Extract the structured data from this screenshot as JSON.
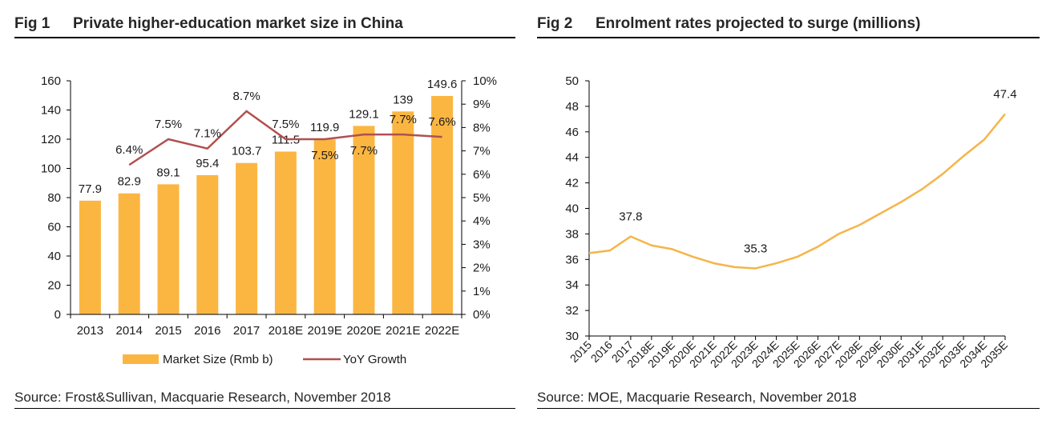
{
  "fig1": {
    "number": "Fig 1",
    "title": "Private higher-education market size in China",
    "source": "Source: Frost&Sullivan, Macquarie Research, November 2018"
  },
  "fig2": {
    "number": "Fig 2",
    "title": "Enrolment rates projected to surge (millions)",
    "source": "Source: MOE, Macquarie Research, November 2018"
  },
  "colors": {
    "bar": "#FBB642",
    "growth_line": "#B0504F",
    "enrolment_line": "#F5B54A",
    "axis": "#000000"
  },
  "chart_data": [
    {
      "type": "bar",
      "title": "Private higher-education market size in China",
      "categories": [
        "2013",
        "2014",
        "2015",
        "2016",
        "2017",
        "2018E",
        "2019E",
        "2020E",
        "2021E",
        "2022E"
      ],
      "series": [
        {
          "name": "Market Size (Rmb b)",
          "type": "bar",
          "axis": "left",
          "values": [
            77.9,
            82.9,
            89.1,
            95.4,
            103.7,
            111.5,
            119.9,
            129.1,
            139,
            149.6
          ],
          "labels": [
            "77.9",
            "82.9",
            "89.1",
            "95.4",
            "103.7",
            "111.5",
            "119.9",
            "129.1",
            "139",
            "149.6"
          ]
        },
        {
          "name": "YoY Growth",
          "type": "line",
          "axis": "right",
          "values": [
            null,
            6.4,
            7.5,
            7.1,
            8.7,
            7.5,
            7.5,
            7.7,
            7.7,
            7.6
          ],
          "labels": [
            null,
            "6.4%",
            "7.5%",
            "7.1%",
            "8.7%",
            "7.5%",
            "7.5%",
            "7.7%",
            "7.7%",
            "7.6%"
          ],
          "label_positions": [
            null,
            "above",
            "above",
            "above",
            "above",
            "above",
            "below",
            "below",
            "above",
            "above"
          ]
        }
      ],
      "left_axis": {
        "ylim": [
          0,
          160
        ],
        "ticks": [
          "0",
          "20",
          "40",
          "60",
          "80",
          "100",
          "120",
          "140",
          "160"
        ]
      },
      "right_axis": {
        "ylim": [
          0,
          10
        ],
        "ticks": [
          "0%",
          "1%",
          "2%",
          "3%",
          "4%",
          "5%",
          "6%",
          "7%",
          "8%",
          "9%",
          "10%"
        ]
      },
      "xlabel": "",
      "ylabel": "",
      "grid": false,
      "legend": {
        "placement": "bottom",
        "entries": [
          "Market Size (Rmb b)",
          "YoY Growth"
        ]
      }
    },
    {
      "type": "line",
      "title": "Enrolment rates projected to surge (millions)",
      "categories": [
        "2015",
        "2016",
        "2017",
        "2018E",
        "2019E",
        "2020E",
        "2021E",
        "2022E",
        "2023E",
        "2024E",
        "2025E",
        "2026E",
        "2027E",
        "2028E",
        "2029E",
        "2030E",
        "2031E",
        "2032E",
        "2033E",
        "2034E",
        "2035E"
      ],
      "series": [
        {
          "name": "Enrolment (millions)",
          "values": [
            36.5,
            36.7,
            37.8,
            37.1,
            36.8,
            36.2,
            35.7,
            35.4,
            35.3,
            35.7,
            36.2,
            37.0,
            38.0,
            38.7,
            39.6,
            40.5,
            41.5,
            42.7,
            44.1,
            45.4,
            47.4
          ]
        }
      ],
      "annotations": [
        {
          "category": "2017",
          "text": "37.8"
        },
        {
          "category": "2023E",
          "text": "35.3"
        },
        {
          "category": "2035E",
          "text": "47.4"
        }
      ],
      "ylim": [
        30,
        50
      ],
      "yticks": [
        "30",
        "32",
        "34",
        "36",
        "38",
        "40",
        "42",
        "44",
        "46",
        "48",
        "50"
      ],
      "xlabel": "",
      "ylabel": "",
      "grid": false,
      "legend": null
    }
  ]
}
